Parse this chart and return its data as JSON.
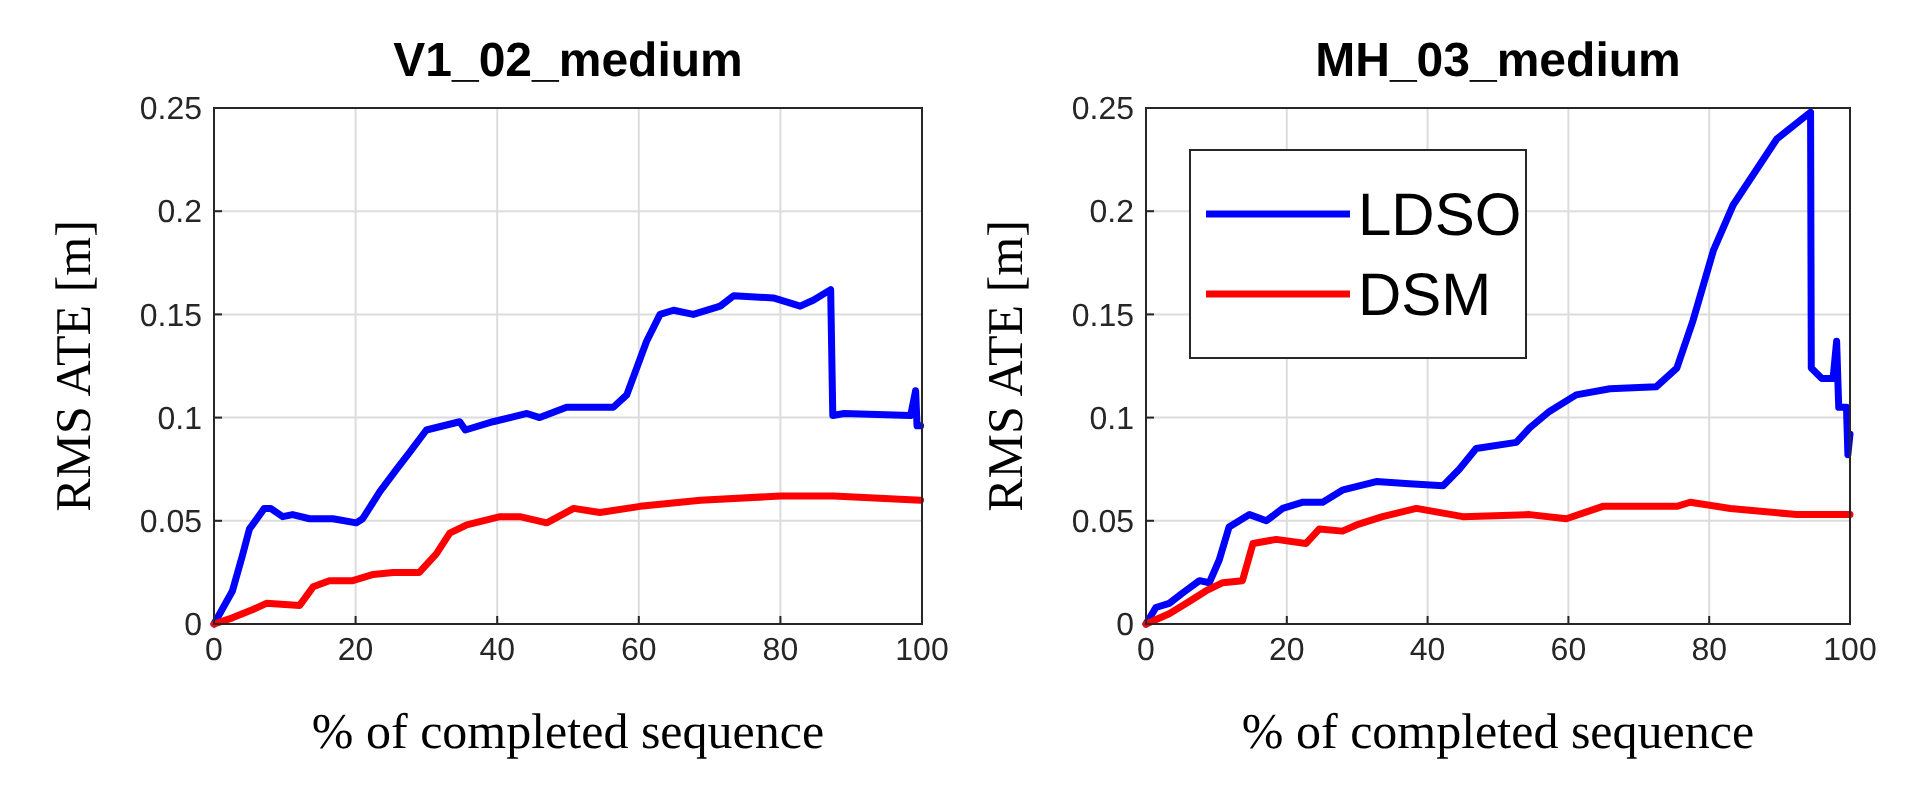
{
  "chart_data": [
    {
      "type": "line",
      "title": "V1_02_medium",
      "xlabel": "% of completed sequence",
      "ylabel": "RMS ATE [m]",
      "xlim": [
        0,
        100
      ],
      "ylim": [
        0,
        0.25
      ],
      "xticks": [
        0,
        20,
        40,
        60,
        80,
        100
      ],
      "yticks": [
        0,
        0.05,
        0.1,
        0.15,
        0.2,
        0.25
      ],
      "grid": true,
      "legend": false,
      "line_style": "solid",
      "marker": "none",
      "series": [
        {
          "color": "#0000ff",
          "x": [
            0,
            2.6,
            4,
            5,
            7.1,
            8,
            9.7,
            11.1,
            13.5,
            16.8,
            20.1,
            21,
            23.4,
            25.8,
            27.6,
            30,
            34.7,
            35.5,
            39.4,
            44.2,
            46,
            49.8,
            56.4,
            58.3,
            61.1,
            63,
            64.9,
            67.7,
            71.5,
            73.4,
            79,
            82.8,
            84.7,
            87.1,
            87.4,
            89,
            98.4,
            99.1,
            99.3,
            99.8
          ],
          "values": [
            0,
            0.016,
            0.033,
            0.046,
            0.056,
            0.056,
            0.052,
            0.053,
            0.051,
            0.051,
            0.049,
            0.051,
            0.064,
            0.075,
            0.083,
            0.094,
            0.098,
            0.094,
            0.098,
            0.102,
            0.1,
            0.105,
            0.105,
            0.111,
            0.137,
            0.15,
            0.152,
            0.15,
            0.154,
            0.159,
            0.158,
            0.154,
            0.157,
            0.162,
            0.101,
            0.102,
            0.101,
            0.113,
            0.096,
            0.096
          ]
        },
        {
          "color": "#ff0000",
          "x": [
            0,
            2.6,
            5.5,
            7.4,
            12.1,
            14,
            16.3,
            19.6,
            22.5,
            25.3,
            29,
            31.4,
            33.3,
            35.7,
            40.4,
            43.2,
            47,
            50.8,
            54.5,
            60.2,
            68.7,
            80,
            87.5,
            99.8
          ],
          "values": [
            0,
            0.003,
            0.007,
            0.01,
            0.009,
            0.018,
            0.021,
            0.021,
            0.024,
            0.025,
            0.025,
            0.034,
            0.044,
            0.048,
            0.052,
            0.052,
            0.049,
            0.056,
            0.054,
            0.057,
            0.06,
            0.062,
            0.062,
            0.06
          ]
        }
      ]
    },
    {
      "type": "line",
      "title": "MH_03_medium",
      "xlabel": "% of completed sequence",
      "ylabel": "RMS ATE [m]",
      "xlim": [
        0,
        100
      ],
      "ylim": [
        0,
        0.25
      ],
      "xticks": [
        0,
        20,
        40,
        60,
        80,
        100
      ],
      "yticks": [
        0,
        0.05,
        0.1,
        0.15,
        0.2,
        0.25
      ],
      "grid": true,
      "legend": "top left",
      "line_style": "solid",
      "marker": "none",
      "series": [
        {
          "name": "LDSO",
          "color": "#0000ff",
          "x": [
            0,
            1.4,
            3.3,
            5.2,
            7.6,
            9,
            10.4,
            11.8,
            14.7,
            17.1,
            19.4,
            22.3,
            25.1,
            28,
            32.7,
            37.4,
            42.2,
            44.5,
            46.9,
            52.6,
            54.5,
            57.3,
            61.1,
            65.9,
            72.5,
            75.4,
            77.7,
            80.6,
            83.4,
            89.6,
            94.4,
            94.5,
            96,
            97.6,
            98.1,
            98.4,
            99.5,
            99.7,
            100
          ],
          "values": [
            0,
            0.008,
            0.01,
            0.015,
            0.021,
            0.02,
            0.031,
            0.047,
            0.053,
            0.05,
            0.056,
            0.059,
            0.059,
            0.065,
            0.069,
            0.068,
            0.067,
            0.075,
            0.085,
            0.088,
            0.095,
            0.103,
            0.111,
            0.114,
            0.115,
            0.124,
            0.147,
            0.181,
            0.203,
            0.235,
            0.248,
            0.124,
            0.119,
            0.119,
            0.137,
            0.105,
            0.105,
            0.082,
            0.092
          ]
        },
        {
          "name": "DSM",
          "color": "#ff0000",
          "x": [
            0,
            3.3,
            6.2,
            8.5,
            10.9,
            13.7,
            15.2,
            18.5,
            22.7,
            24.6,
            27.9,
            29.9,
            33.6,
            38.4,
            45,
            54.5,
            59.7,
            64.9,
            75.4,
            77.3,
            83,
            92.4,
            100
          ],
          "values": [
            0,
            0.005,
            0.011,
            0.016,
            0.02,
            0.021,
            0.039,
            0.041,
            0.039,
            0.046,
            0.045,
            0.048,
            0.052,
            0.056,
            0.052,
            0.053,
            0.051,
            0.057,
            0.057,
            0.059,
            0.056,
            0.053,
            0.053
          ]
        }
      ]
    }
  ]
}
